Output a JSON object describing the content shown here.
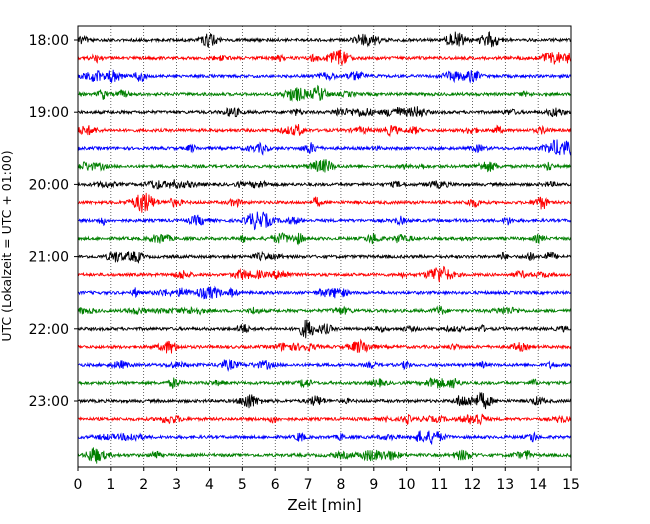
{
  "chart_data": {
    "type": "line",
    "title": "",
    "xlabel": "Zeit  [min]",
    "ylabel": "UTC (Lokalzeit = UTC + 01:00)",
    "xlim": [
      0,
      15
    ],
    "x_ticks": [
      0,
      1,
      2,
      3,
      4,
      5,
      6,
      7,
      8,
      9,
      10,
      11,
      12,
      13,
      14,
      15
    ],
    "x_tick_labels": [
      "0",
      "1",
      "2",
      "3",
      "4",
      "5",
      "6",
      "7",
      "8",
      "9",
      "10",
      "11",
      "12",
      "13",
      "14",
      "15"
    ],
    "y_axis": {
      "start": "18:00",
      "step_minutes": 15,
      "inverted": true,
      "tick_labels": [
        "18:00",
        "19:00",
        "20:00",
        "21:00",
        "22:00",
        "23:00"
      ]
    },
    "grid": {
      "x": true,
      "y": false,
      "style": "dotted"
    },
    "color_cycle": [
      "#000000",
      "#ff0000",
      "#0000ff",
      "#008000"
    ],
    "traces": [
      {
        "start": "18:00",
        "color": "#000000"
      },
      {
        "start": "18:15",
        "color": "#ff0000"
      },
      {
        "start": "18:30",
        "color": "#0000ff"
      },
      {
        "start": "18:45",
        "color": "#008000"
      },
      {
        "start": "19:00",
        "color": "#000000"
      },
      {
        "start": "19:15",
        "color": "#ff0000"
      },
      {
        "start": "19:30",
        "color": "#0000ff"
      },
      {
        "start": "19:45",
        "color": "#008000"
      },
      {
        "start": "20:00",
        "color": "#000000"
      },
      {
        "start": "20:15",
        "color": "#ff0000"
      },
      {
        "start": "20:30",
        "color": "#0000ff"
      },
      {
        "start": "20:45",
        "color": "#008000"
      },
      {
        "start": "21:00",
        "color": "#000000"
      },
      {
        "start": "21:15",
        "color": "#ff0000"
      },
      {
        "start": "21:30",
        "color": "#0000ff"
      },
      {
        "start": "21:45",
        "color": "#008000"
      },
      {
        "start": "22:00",
        "color": "#000000"
      },
      {
        "start": "22:15",
        "color": "#ff0000"
      },
      {
        "start": "22:30",
        "color": "#0000ff"
      },
      {
        "start": "22:45",
        "color": "#008000"
      },
      {
        "start": "23:00",
        "color": "#000000"
      },
      {
        "start": "23:15",
        "color": "#ff0000"
      },
      {
        "start": "23:30",
        "color": "#0000ff"
      },
      {
        "start": "23:45",
        "color": "#008000"
      }
    ]
  }
}
